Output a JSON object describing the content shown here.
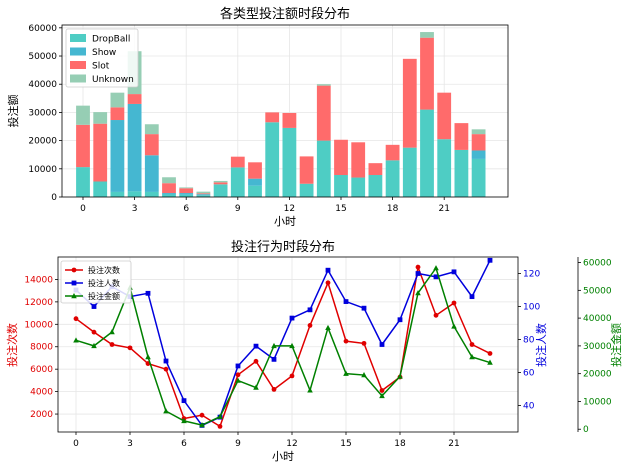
{
  "colors": {
    "dropball": "#4ECDC4",
    "show": "#45B7D1",
    "slot": "#FF6B6B",
    "unknown": "#96CEB4",
    "count_line": "#e00000",
    "users_line": "#0000dd",
    "amount_line": "#008000",
    "grid": "#e6e6e6",
    "axis": "#000000"
  },
  "chart_data": [
    {
      "type": "bar",
      "stacked": true,
      "title": "各类型投注额时段分布",
      "xlabel": "小时",
      "ylabel": "投注额",
      "x": [
        0,
        1,
        2,
        3,
        4,
        5,
        6,
        7,
        8,
        9,
        10,
        11,
        12,
        13,
        14,
        15,
        16,
        17,
        18,
        19,
        20,
        21,
        22,
        23
      ],
      "xticks": [
        0,
        3,
        6,
        9,
        12,
        15,
        18,
        21
      ],
      "yticks": [
        0,
        10000,
        20000,
        30000,
        40000,
        50000,
        60000
      ],
      "ylim": [
        0,
        61000
      ],
      "grid": true,
      "legend": {
        "position": "top-left",
        "labels": [
          "DropBall",
          "Show",
          "Slot",
          "Unknown"
        ]
      },
      "series": [
        {
          "name": "DropBall",
          "color_key": "dropball",
          "values": [
            10600,
            5500,
            1800,
            2000,
            1800,
            900,
            800,
            600,
            4500,
            10500,
            4000,
            26500,
            24500,
            4700,
            20000,
            7800,
            6900,
            7800,
            13000,
            17500,
            31000,
            20500,
            16700,
            13500
          ]
        },
        {
          "name": "Show",
          "color_key": "show",
          "values": [
            0,
            0,
            25500,
            31000,
            13000,
            500,
            600,
            400,
            0,
            0,
            2500,
            0,
            0,
            0,
            0,
            0,
            0,
            0,
            0,
            0,
            0,
            0,
            0,
            3000
          ]
        },
        {
          "name": "Slot",
          "color_key": "slot",
          "values": [
            15000,
            20500,
            4500,
            3500,
            7500,
            3500,
            1700,
            300,
            700,
            3800,
            5800,
            3500,
            5300,
            9700,
            19500,
            12500,
            12500,
            4200,
            5500,
            31500,
            25500,
            16500,
            9500,
            5800
          ]
        },
        {
          "name": "Unknown",
          "color_key": "unknown",
          "values": [
            6800,
            4100,
            5200,
            15200,
            3500,
            2100,
            300,
            600,
            500,
            0,
            0,
            0,
            0,
            0,
            500,
            0,
            0,
            0,
            0,
            0,
            2000,
            0,
            0,
            1700
          ]
        }
      ]
    },
    {
      "type": "line",
      "title": "投注行为时段分布",
      "xlabel": "小时",
      "x": [
        0,
        1,
        2,
        3,
        4,
        5,
        6,
        7,
        8,
        9,
        10,
        11,
        12,
        13,
        14,
        15,
        16,
        17,
        18,
        19,
        20,
        21,
        22,
        23
      ],
      "xticks": [
        0,
        3,
        6,
        9,
        12,
        15,
        18,
        21
      ],
      "grid": true,
      "legend": {
        "position": "top-left",
        "labels": [
          "投注次数",
          "投注人数",
          "投注金额"
        ]
      },
      "axes": [
        {
          "id": "left",
          "label": "投注次数",
          "ylim": [
            400,
            16000
          ],
          "ticks": [
            2000,
            4000,
            6000,
            8000,
            10000,
            12000,
            14000
          ],
          "color_key": "count_line"
        },
        {
          "id": "right1",
          "label": "投注人数",
          "ylim": [
            24,
            130
          ],
          "ticks": [
            40,
            60,
            80,
            100,
            120
          ],
          "color_key": "users_line"
        },
        {
          "id": "right2",
          "label": "投注金额",
          "ylim": [
            -1000,
            62000
          ],
          "ticks": [
            0,
            10000,
            20000,
            30000,
            40000,
            50000,
            60000
          ],
          "color_key": "amount_line"
        }
      ],
      "series": [
        {
          "name": "投注次数",
          "axis": "left",
          "marker": "circle",
          "color_key": "count_line",
          "values": [
            10500,
            9300,
            8200,
            7900,
            6500,
            6000,
            1600,
            1900,
            900,
            5500,
            6700,
            4200,
            5400,
            9900,
            13700,
            8500,
            8300,
            4100,
            5300,
            15100,
            10800,
            11900,
            8200,
            7400
          ]
        },
        {
          "name": "投注人数",
          "axis": "right1",
          "marker": "square",
          "color_key": "users_line",
          "values": [
            110,
            100,
            112,
            106,
            108,
            67,
            43,
            28,
            33,
            64,
            76,
            68,
            93,
            98,
            122,
            103,
            99,
            77,
            92,
            120,
            118,
            121,
            106,
            128
          ]
        },
        {
          "name": "投注金额",
          "axis": "right2",
          "marker": "triangle",
          "color_key": "amount_line",
          "values": [
            32000,
            30000,
            35000,
            51000,
            26000,
            6500,
            3000,
            1500,
            4500,
            17500,
            15000,
            30000,
            30000,
            14000,
            36500,
            20000,
            19500,
            12000,
            19000,
            49000,
            58000,
            37000,
            26000,
            24000
          ]
        }
      ]
    }
  ]
}
